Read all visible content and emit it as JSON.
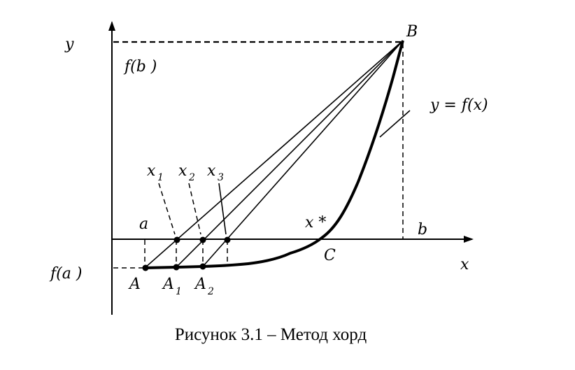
{
  "labels": {
    "y_axis": "y",
    "x_axis": "x",
    "fb": "f(b )",
    "fa": "f(a )",
    "B": "B",
    "A": "A",
    "A1": "A",
    "A1_sub": "1",
    "A2": "A",
    "A2_sub": "2",
    "C": "C",
    "a": "a",
    "b": "b",
    "x_star": "x *",
    "x1": "x",
    "x1_sub": "1",
    "x2": "x",
    "x2_sub": "2",
    "x3": "x",
    "x3_sub": "3",
    "function": "y  =  f(x)"
  },
  "caption": "Рисунок 3.1 – Метод хорд"
}
